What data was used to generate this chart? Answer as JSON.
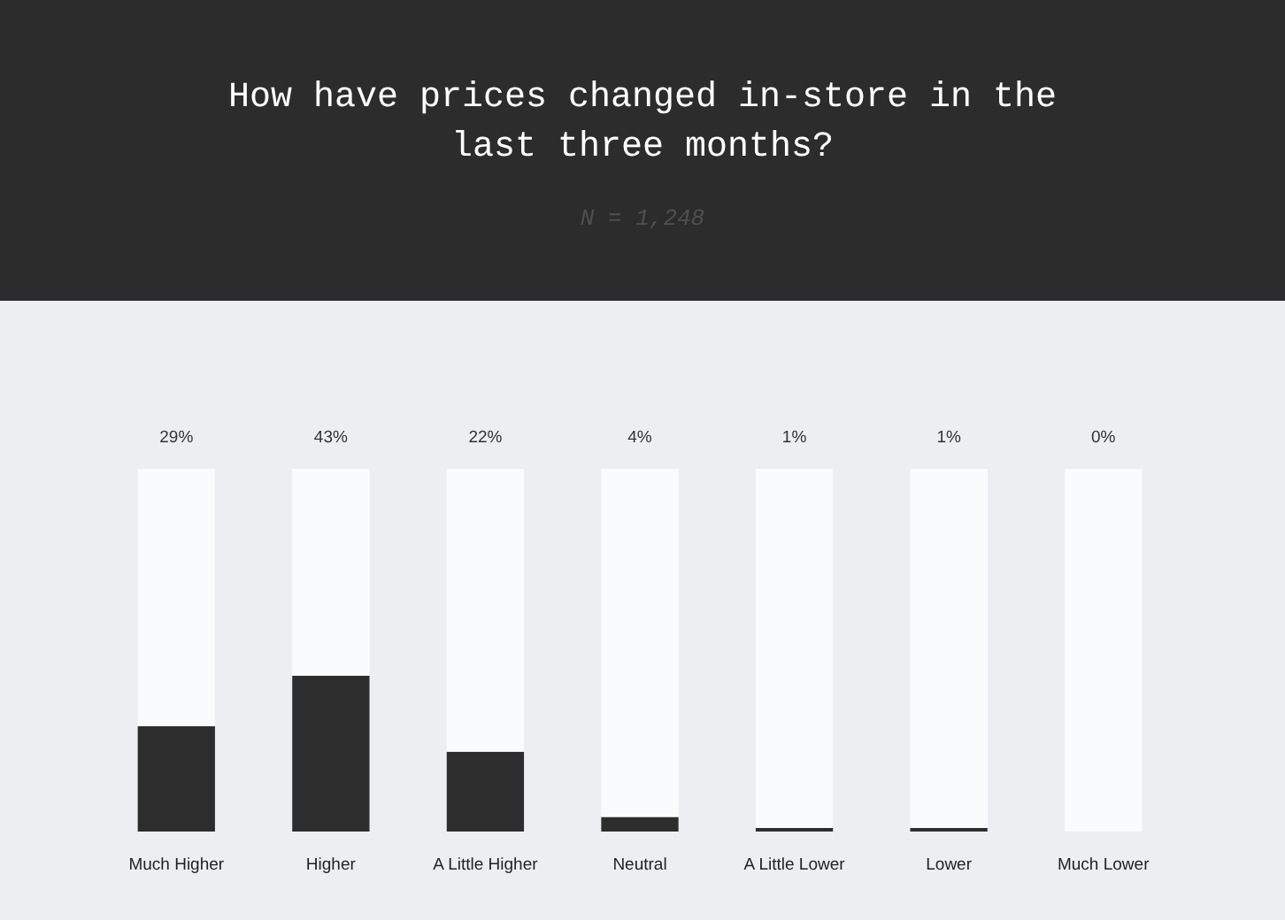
{
  "chart_data": {
    "type": "bar",
    "title": "How have prices changed in-store in the last three months?",
    "subtitle": "N = 1,248",
    "categories": [
      "Much Higher",
      "Higher",
      "A Little Higher",
      "Neutral",
      "A Little Lower",
      "Lower",
      "Much Lower"
    ],
    "stacked": true,
    "series": [
      {
        "color": "#2d2d2d",
        "values": [
          29,
          43,
          22,
          4,
          1,
          1,
          0
        ],
        "value_labels": [
          "29%",
          "43%",
          "22%",
          "4%",
          "1%",
          "1%",
          "0%"
        ]
      },
      {
        "color": "#fafbfc",
        "values": [
          71,
          57,
          78,
          96,
          99,
          99,
          100
        ]
      }
    ],
    "tick_labels": "x",
    "grid": false,
    "legend": false
  }
}
